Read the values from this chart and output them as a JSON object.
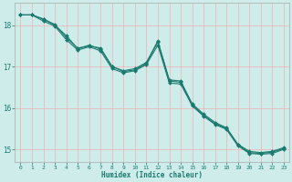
{
  "title": "",
  "xlabel": "Humidex (Indice chaleur)",
  "ylabel": "",
  "background_color": "#ceecea",
  "grid_color": "#f0b0b0",
  "line_color": "#1a7a6e",
  "xlim": [
    -0.5,
    23.5
  ],
  "ylim": [
    14.7,
    18.55
  ],
  "yticks": [
    15,
    16,
    17,
    18
  ],
  "xticks": [
    0,
    1,
    2,
    3,
    4,
    5,
    6,
    7,
    8,
    9,
    10,
    11,
    12,
    13,
    14,
    15,
    16,
    17,
    18,
    19,
    20,
    21,
    22,
    23
  ],
  "series1_x": [
    0,
    1,
    2,
    3,
    4,
    5,
    6,
    7,
    8,
    9,
    10,
    11,
    12,
    13,
    14,
    15,
    16,
    17,
    18,
    19,
    20,
    21,
    22,
    23
  ],
  "series1_y": [
    18.25,
    18.25,
    18.15,
    18.0,
    17.75,
    17.43,
    17.52,
    17.42,
    17.0,
    16.88,
    16.92,
    17.08,
    17.6,
    16.65,
    16.62,
    16.08,
    15.82,
    15.62,
    15.5,
    15.1,
    14.92,
    14.9,
    14.93,
    15.02
  ],
  "series2_x": [
    0,
    1,
    2,
    3,
    4,
    5,
    6,
    7,
    8,
    9,
    10,
    11,
    12,
    13,
    14,
    15,
    16,
    17,
    18,
    19,
    20,
    21,
    22,
    23
  ],
  "series2_y": [
    18.25,
    18.25,
    18.15,
    18.02,
    17.7,
    17.45,
    17.5,
    17.45,
    17.0,
    16.9,
    16.95,
    17.1,
    17.62,
    16.68,
    16.65,
    16.1,
    15.85,
    15.65,
    15.52,
    15.12,
    14.95,
    14.92,
    14.95,
    15.04
  ],
  "series3_x": [
    0,
    1,
    2,
    3,
    4,
    5,
    6,
    7,
    8,
    9,
    10,
    11,
    12,
    13,
    14,
    15,
    16,
    17,
    18,
    19,
    20,
    21,
    22,
    23
  ],
  "series3_y": [
    18.25,
    18.25,
    18.1,
    17.98,
    17.65,
    17.4,
    17.48,
    17.38,
    16.95,
    16.85,
    16.9,
    17.05,
    17.52,
    16.6,
    16.58,
    16.05,
    15.8,
    15.6,
    15.48,
    15.08,
    14.9,
    14.88,
    14.9,
    15.0
  ]
}
